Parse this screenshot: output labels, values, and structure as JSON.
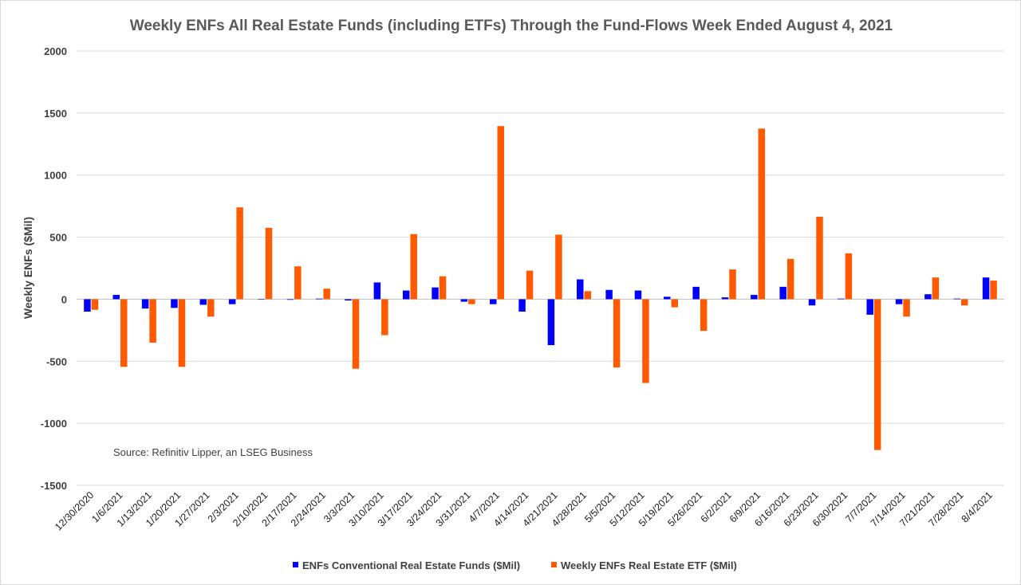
{
  "chart_data": {
    "type": "bar",
    "title": "Weekly ENFs All Real Estate Funds (including ETFs) Through the Fund-Flows Week Ended August 4, 2021",
    "xlabel": "",
    "ylabel": "Weekly ENFs ($Mil)",
    "ylim": [
      -1500,
      2000
    ],
    "yticks": [
      2000,
      1500,
      1000,
      500,
      0,
      -500,
      -1000,
      -1500
    ],
    "ytick_labels": [
      "2000",
      "1500",
      "1000",
      "500",
      "0",
      "-500",
      "-1000",
      "-1500"
    ],
    "grid": true,
    "legend_position": "bottom",
    "source": "Source: Refinitiv Lipper, an LSEG Business",
    "categories": [
      "12/30/2020",
      "1/6/2021",
      "1/13/2021",
      "1/20/2021",
      "1/27/2021",
      "2/3/2021",
      "2/10/2021",
      "2/17/2021",
      "2/24/2021",
      "3/3/2021",
      "3/10/2021",
      "3/17/2021",
      "3/24/2021",
      "3/31/2021",
      "4/7/2021",
      "4/14/2021",
      "4/21/2021",
      "4/28/2021",
      "5/5/2021",
      "5/12/2021",
      "5/19/2021",
      "5/26/2021",
      "6/2/2021",
      "6/9/2021",
      "6/16/2021",
      "6/23/2021",
      "6/30/2021",
      "7/7/2021",
      "7/14/2021",
      "7/21/2021",
      "7/28/2021",
      "8/4/2021"
    ],
    "series": [
      {
        "name": "ENFs Conventional Real Estate Funds ($Mil)",
        "color": "#0000ff",
        "values": [
          -100,
          35,
          -75,
          -70,
          -45,
          -40,
          0,
          -5,
          5,
          -10,
          135,
          70,
          95,
          -20,
          -40,
          -100,
          -370,
          160,
          75,
          70,
          20,
          100,
          15,
          35,
          100,
          -50,
          5,
          -125,
          -40,
          40,
          5,
          175
        ]
      },
      {
        "name": "Weekly ENFs Real Estate ETF ($Mil)",
        "color": "#ff5a00",
        "values": [
          -85,
          -545,
          -350,
          -545,
          -140,
          740,
          575,
          265,
          85,
          -560,
          -290,
          525,
          185,
          -40,
          1395,
          230,
          520,
          65,
          -550,
          -675,
          -65,
          -255,
          240,
          1375,
          325,
          665,
          370,
          -1215,
          -140,
          175,
          -50,
          150
        ]
      }
    ]
  }
}
